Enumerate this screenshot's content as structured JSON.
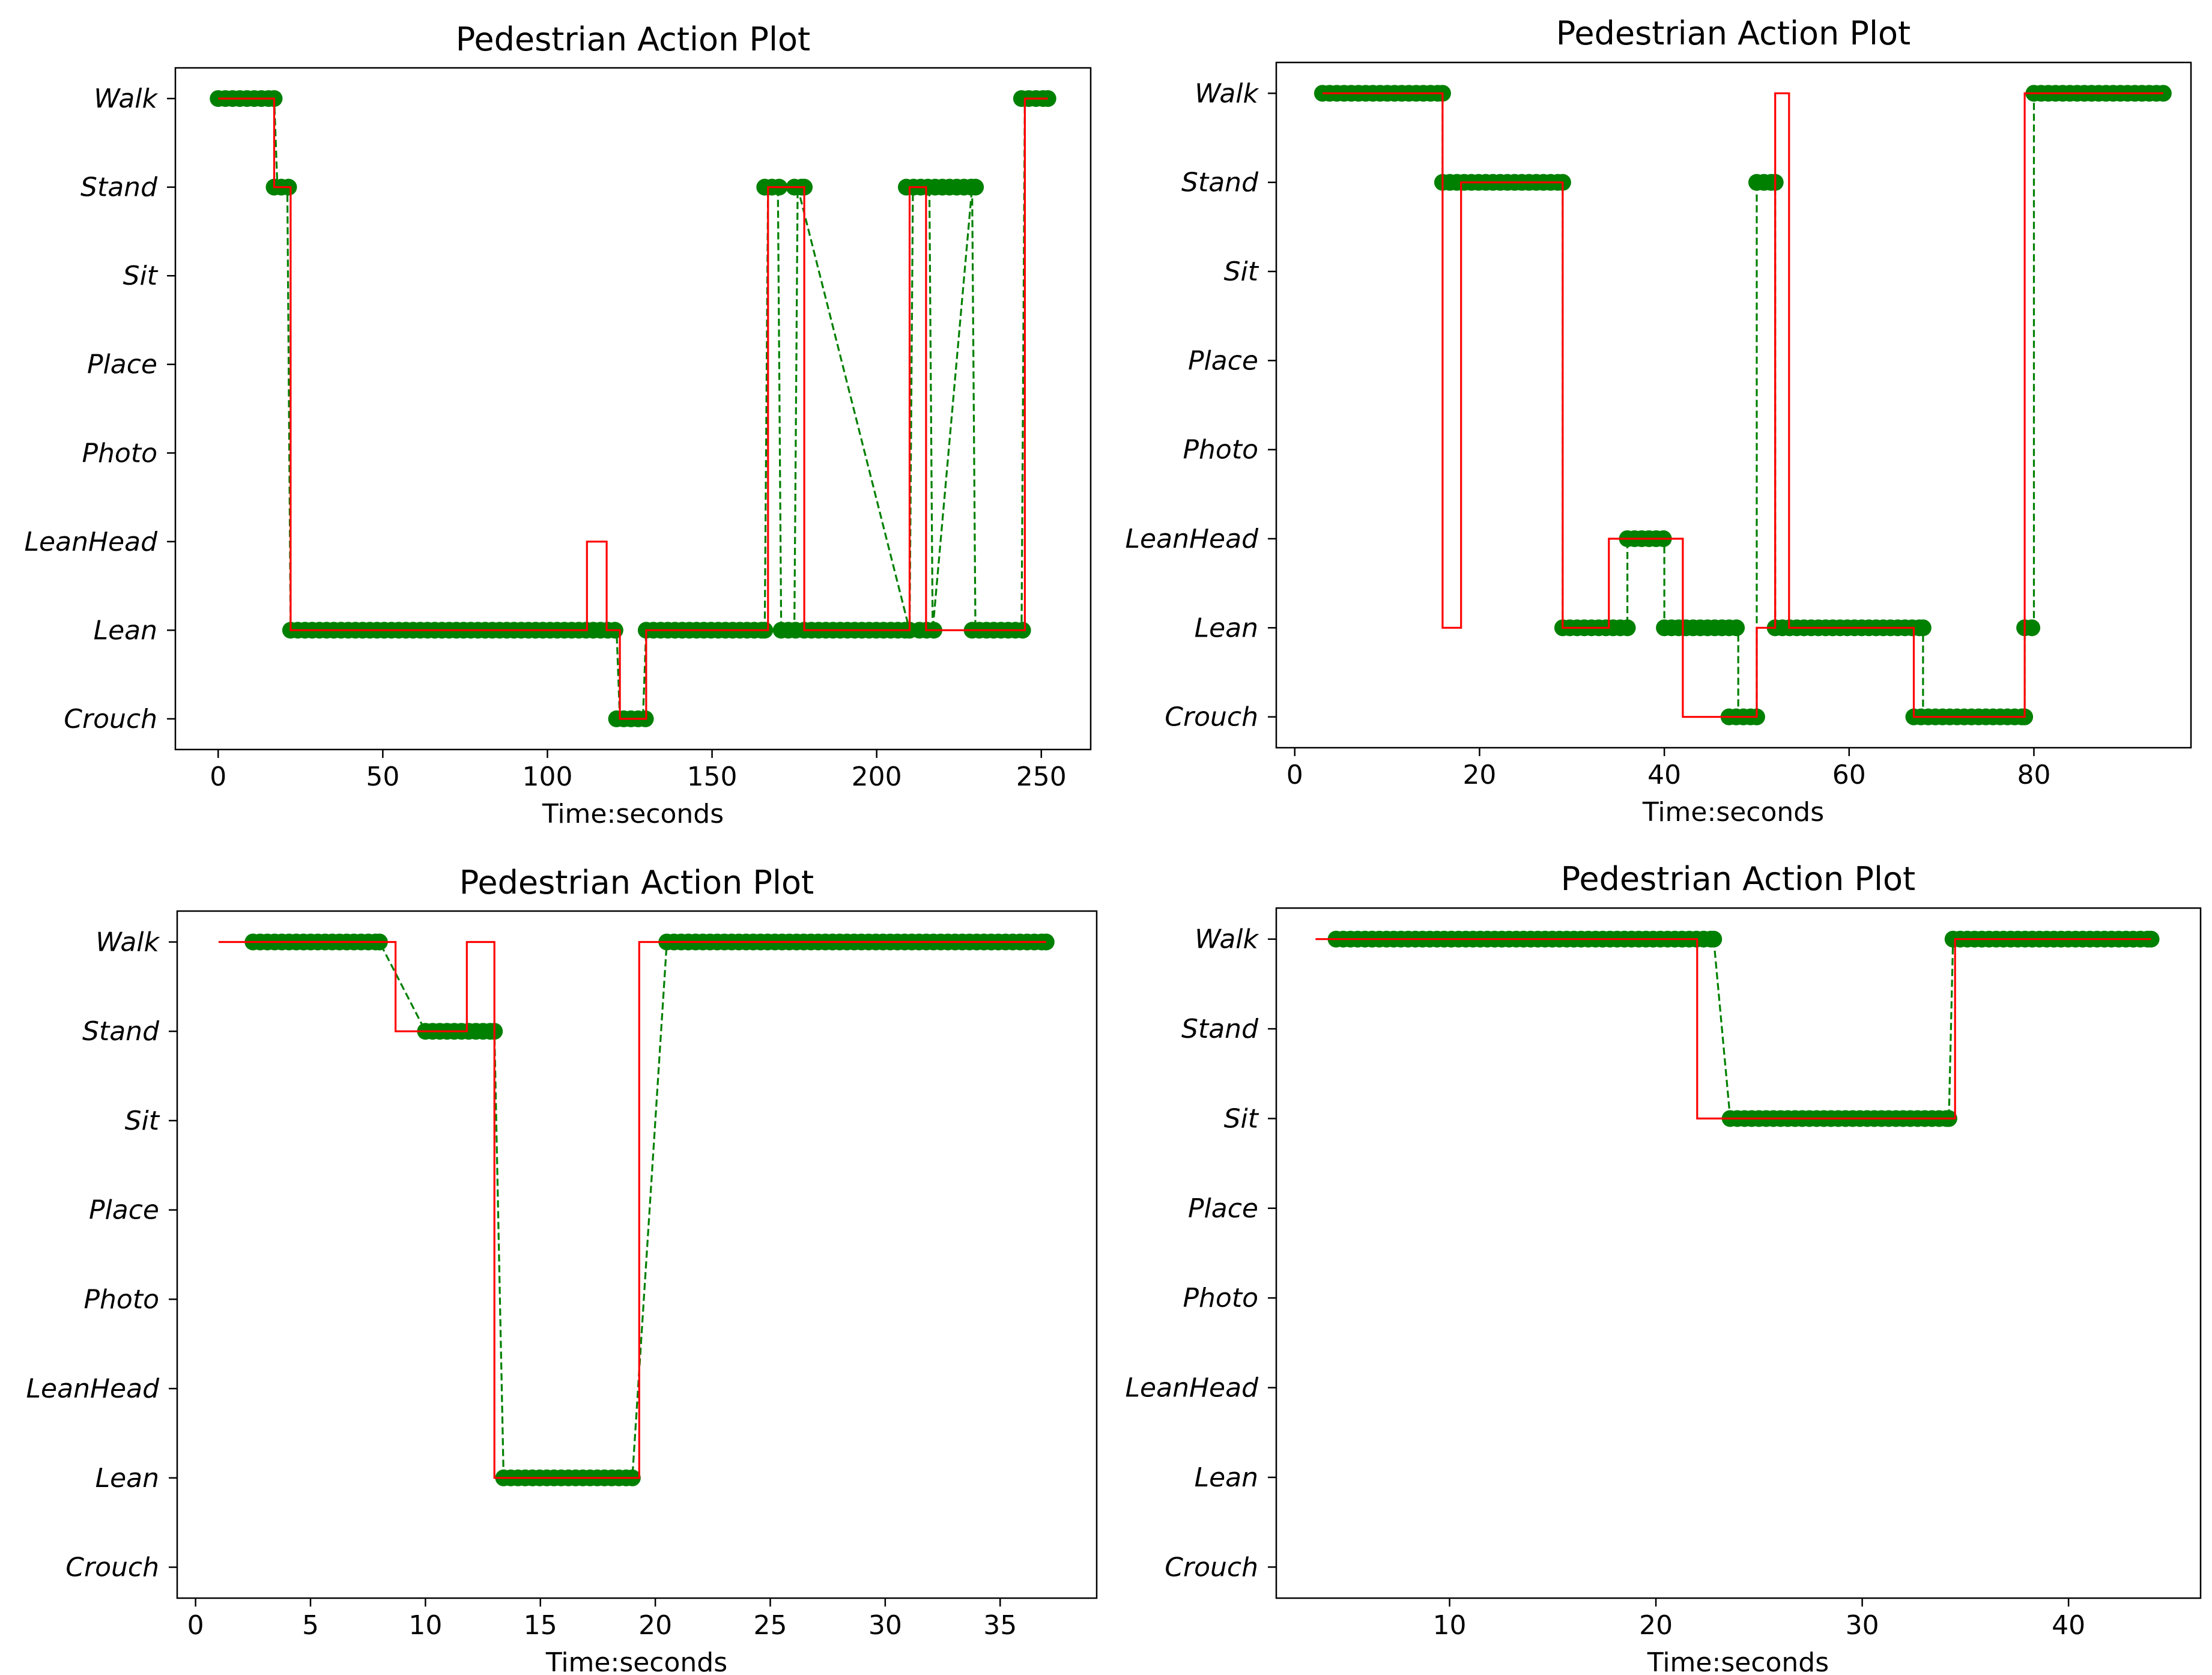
{
  "colors": {
    "truth": "#ff0000",
    "pred": "#008000",
    "marker": "#008000",
    "axes": "#000000"
  },
  "chart_data": [
    {
      "type": "line",
      "title": "Pedestrian Action Plot",
      "xlabel": "Time:seconds",
      "ylabel": "",
      "xlim": [
        -13,
        265
      ],
      "xticks": [
        0,
        50,
        100,
        150,
        200,
        250
      ],
      "categories": [
        "Crouch",
        "Lean",
        "LeanHead",
        "Photo",
        "Place",
        "Sit",
        "Stand",
        "Walk"
      ],
      "grid": false,
      "series": [
        {
          "kind": "truth-step",
          "x": [
            0,
            17,
            17,
            22,
            22,
            112,
            112,
            118,
            118,
            122,
            122,
            130,
            130,
            167,
            167,
            178,
            178,
            210,
            210,
            215,
            215,
            245,
            245,
            252
          ],
          "y": [
            "Walk",
            "Walk",
            "Stand",
            "Stand",
            "Lean",
            "Lean",
            "LeanHead",
            "LeanHead",
            "Lean",
            "Lean",
            "Crouch",
            "Crouch",
            "Lean",
            "Lean",
            "Stand",
            "Stand",
            "Lean",
            "Lean",
            "Stand",
            "Stand",
            "Lean",
            "Lean",
            "Walk",
            "Walk"
          ]
        },
        {
          "kind": "pred-dashed",
          "x": [
            0,
            17,
            18,
            21,
            22,
            121,
            122,
            129,
            130,
            166,
            167,
            170,
            171,
            175,
            176,
            210,
            211,
            216,
            217,
            229,
            230,
            244,
            245,
            252
          ],
          "y": [
            "Walk",
            "Walk",
            "Stand",
            "Stand",
            "Lean",
            "Lean",
            "Crouch",
            "Crouch",
            "Lean",
            "Lean",
            "Stand",
            "Stand",
            "Lean",
            "Lean",
            "Stand",
            "Lean",
            "Stand",
            "Stand",
            "Lean",
            "Stand",
            "Lean",
            "Lean",
            "Walk",
            "Walk"
          ]
        },
        {
          "kind": "pred-markers",
          "segments": [
            [
              0,
              17,
              "Walk"
            ],
            [
              17,
              22,
              "Stand"
            ],
            [
              22,
              121,
              "Lean"
            ],
            [
              121,
              130,
              "Crouch"
            ],
            [
              130,
              166,
              "Lean"
            ],
            [
              166,
              171,
              "Stand"
            ],
            [
              171,
              176,
              "Lean"
            ],
            [
              175,
              178,
              "Stand"
            ],
            [
              178,
              210,
              "Lean"
            ],
            [
              209,
              230,
              "Stand"
            ],
            [
              213,
              218,
              "Lean"
            ],
            [
              229,
              245,
              "Lean"
            ],
            [
              244,
              252,
              "Walk"
            ]
          ]
        }
      ]
    },
    {
      "type": "line",
      "title": "Pedestrian Action Plot",
      "xlabel": "Time:seconds",
      "ylabel": "",
      "xlim": [
        -2,
        97
      ],
      "xticks": [
        0,
        20,
        40,
        60,
        80
      ],
      "categories": [
        "Crouch",
        "Lean",
        "LeanHead",
        "Photo",
        "Place",
        "Sit",
        "Stand",
        "Walk"
      ],
      "grid": false,
      "series": [
        {
          "kind": "truth-step",
          "x": [
            3,
            16,
            16,
            18,
            18,
            29,
            29,
            34,
            34,
            42,
            42,
            50,
            50,
            52,
            52,
            53.5,
            53.5,
            67,
            67,
            79,
            79,
            94
          ],
          "y": [
            "Walk",
            "Walk",
            "Lean",
            "Lean",
            "Stand",
            "Stand",
            "Lean",
            "Lean",
            "LeanHead",
            "LeanHead",
            "Crouch",
            "Crouch",
            "Lean",
            "Lean",
            "Walk",
            "Walk",
            "Lean",
            "Lean",
            "Crouch",
            "Crouch",
            "Walk",
            "Walk"
          ]
        },
        {
          "kind": "pred-dashed",
          "x": [
            3,
            16,
            16,
            29,
            29,
            36,
            36,
            40,
            40,
            48,
            48,
            50,
            50,
            52,
            52,
            68,
            68,
            79,
            79,
            80,
            80,
            94
          ],
          "y": [
            "Walk",
            "Walk",
            "Stand",
            "Stand",
            "Lean",
            "Lean",
            "LeanHead",
            "LeanHead",
            "Lean",
            "Lean",
            "Crouch",
            "Crouch",
            "Stand",
            "Stand",
            "Lean",
            "Lean",
            "Crouch",
            "Crouch",
            "Lean",
            "Lean",
            "Walk",
            "Walk"
          ]
        },
        {
          "kind": "pred-markers",
          "segments": [
            [
              3,
              16,
              "Walk"
            ],
            [
              16,
              29,
              "Stand"
            ],
            [
              29,
              36,
              "Lean"
            ],
            [
              36,
              40,
              "LeanHead"
            ],
            [
              40,
              48,
              "Lean"
            ],
            [
              47,
              50,
              "Crouch"
            ],
            [
              50,
              52,
              "Stand"
            ],
            [
              52,
              68,
              "Lean"
            ],
            [
              67,
              79,
              "Crouch"
            ],
            [
              79,
              80,
              "Lean"
            ],
            [
              80,
              94,
              "Walk"
            ]
          ]
        }
      ]
    },
    {
      "type": "line",
      "title": "Pedestrian Action Plot",
      "xlabel": "Time:seconds",
      "ylabel": "",
      "xlim": [
        -0.8,
        39.2
      ],
      "xticks": [
        0,
        5,
        10,
        15,
        20,
        25,
        30,
        35
      ],
      "categories": [
        "Crouch",
        "Lean",
        "LeanHead",
        "Photo",
        "Place",
        "Sit",
        "Stand",
        "Walk"
      ],
      "grid": false,
      "series": [
        {
          "kind": "truth-step",
          "x": [
            1,
            8.7,
            8.7,
            11.8,
            11.8,
            13,
            13,
            19.3,
            19.3,
            37
          ],
          "y": [
            "Walk",
            "Walk",
            "Stand",
            "Stand",
            "Walk",
            "Walk",
            "Lean",
            "Lean",
            "Walk",
            "Walk"
          ]
        },
        {
          "kind": "pred-dashed",
          "x": [
            2.5,
            8,
            10,
            13,
            13.4,
            19,
            20.5,
            37
          ],
          "y": [
            "Walk",
            "Walk",
            "Stand",
            "Stand",
            "Lean",
            "Lean",
            "Walk",
            "Walk"
          ]
        },
        {
          "kind": "pred-markers",
          "segments": [
            [
              2.5,
              8,
              "Walk"
            ],
            [
              10,
              13,
              "Stand"
            ],
            [
              13.4,
              19,
              "Lean"
            ],
            [
              20.5,
              37,
              "Walk"
            ]
          ]
        }
      ]
    },
    {
      "type": "line",
      "title": "Pedestrian Action Plot",
      "xlabel": "Time:seconds",
      "ylabel": "",
      "xlim": [
        1.6,
        46.4
      ],
      "xticks": [
        10,
        20,
        30,
        40
      ],
      "categories": [
        "Crouch",
        "Lean",
        "LeanHead",
        "Photo",
        "Place",
        "Sit",
        "Stand",
        "Walk"
      ],
      "grid": false,
      "series": [
        {
          "kind": "truth-step",
          "x": [
            3.5,
            22,
            22,
            34.5,
            34.5,
            44
          ],
          "y": [
            "Walk",
            "Walk",
            "Sit",
            "Sit",
            "Walk",
            "Walk"
          ]
        },
        {
          "kind": "pred-dashed",
          "x": [
            4.5,
            22.8,
            23.6,
            34.2,
            34.4,
            44
          ],
          "y": [
            "Walk",
            "Walk",
            "Sit",
            "Sit",
            "Walk",
            "Walk"
          ]
        },
        {
          "kind": "pred-markers",
          "segments": [
            [
              4.5,
              22.8,
              "Walk"
            ],
            [
              23.6,
              34.2,
              "Sit"
            ],
            [
              34.4,
              44,
              "Walk"
            ]
          ]
        }
      ]
    }
  ]
}
